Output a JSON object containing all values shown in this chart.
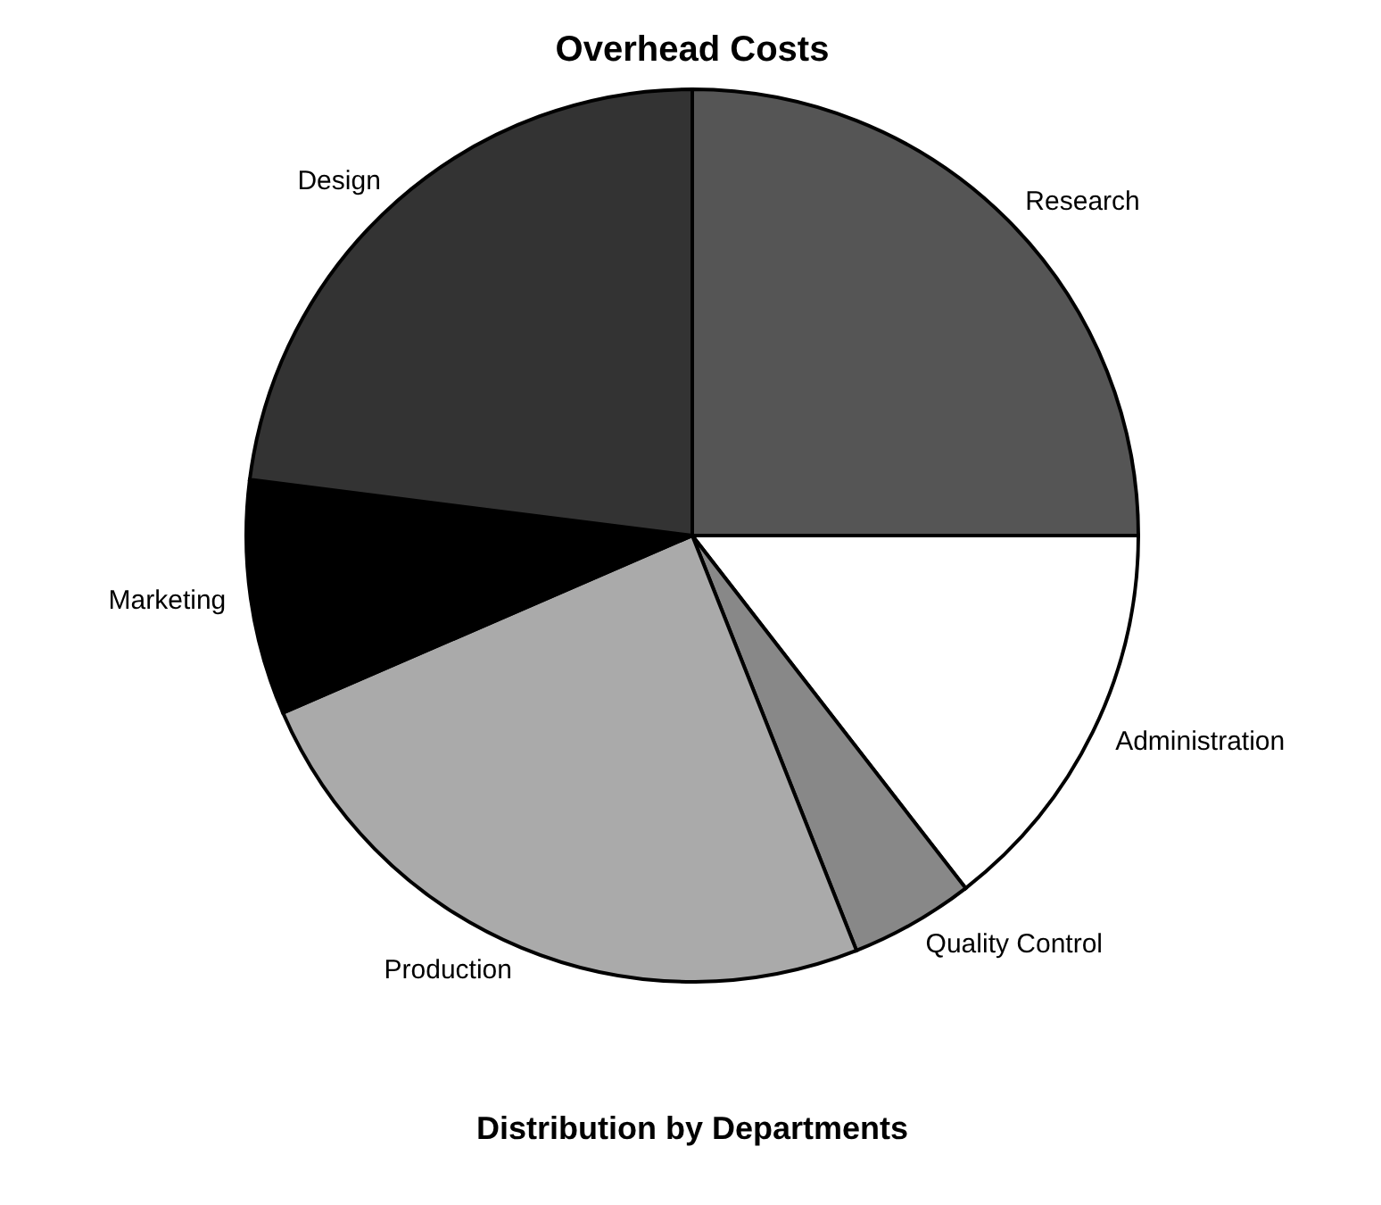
{
  "chart_data": {
    "type": "pie",
    "title": "Overhead Costs",
    "subtitle": "Distribution by Departments",
    "categories": [
      "Research",
      "Administration",
      "Quality Control",
      "Production",
      "Marketing",
      "Design"
    ],
    "values": [
      25,
      14.5,
      4.5,
      24.5,
      8.5,
      23
    ],
    "colors": [
      "#555555",
      "#ffffff",
      "#888888",
      "#aaaaaa",
      "#000000",
      "#333333"
    ]
  }
}
